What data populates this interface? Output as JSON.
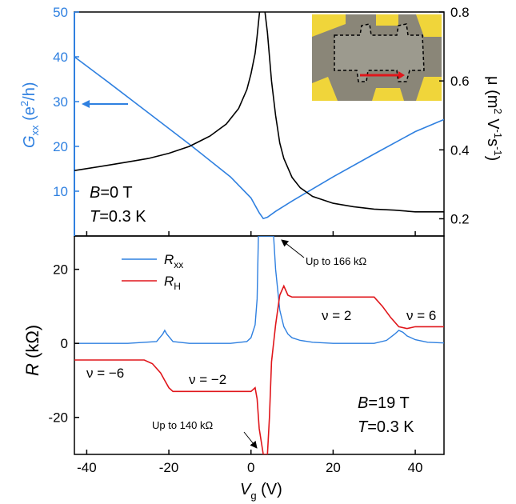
{
  "colors": {
    "gxx": "#2f80e0",
    "mobility": "#000000",
    "rxx": "#2f80e0",
    "rh": "#e0161b",
    "inset_contact": "#f0d53a",
    "inset_substrate": "#8a8678"
  },
  "chart_data": [
    {
      "type": "line",
      "panel": "top",
      "xlabel": "",
      "ylabel_left": "G_xx (e^2/h)",
      "ylabel_left_parts": [
        "G",
        "xx",
        " (e",
        "2",
        "/h)"
      ],
      "ylabel_right": "μ (m^2 V^-1 s^-1)",
      "ylabel_right_parts": [
        "μ (m",
        "2",
        " V",
        "-1",
        "s",
        "-1",
        ")"
      ],
      "xlim": [
        -43,
        47
      ],
      "ylim_left": [
        0,
        50
      ],
      "ylim_right": [
        0.15,
        0.8
      ],
      "yticks_left": [
        "10",
        "20",
        "30",
        "40",
        "50"
      ],
      "yticks_right": [
        "0.2",
        "0.4",
        "0.6",
        "0.8"
      ],
      "annotations": [
        "B=0 T",
        "T=0.3 K"
      ],
      "series": [
        {
          "axis": "left",
          "x": [
            -43,
            -35,
            -25,
            -15,
            -5,
            0,
            2,
            3,
            4,
            6,
            10,
            20,
            30,
            40,
            47
          ],
          "values": [
            40,
            34.5,
            27.5,
            20.5,
            13.2,
            8.5,
            5.2,
            3.9,
            4.2,
            5.5,
            7.8,
            13.2,
            18.3,
            23.3,
            26
          ]
        },
        {
          "axis": "right",
          "x": [
            -43,
            -35,
            -30,
            -25,
            -20,
            -15,
            -10,
            -6,
            -3,
            -1,
            0,
            1,
            1.5,
            2,
            2.3,
            3.2,
            4,
            5,
            6,
            7,
            8,
            10,
            12,
            15,
            20,
            25,
            30,
            35,
            40,
            47
          ],
          "values": [
            0.34,
            0.355,
            0.365,
            0.375,
            0.39,
            0.41,
            0.44,
            0.475,
            0.52,
            0.575,
            0.62,
            0.68,
            0.73,
            0.79,
            0.82,
            0.82,
            0.74,
            0.6,
            0.5,
            0.42,
            0.375,
            0.32,
            0.29,
            0.265,
            0.245,
            0.235,
            0.228,
            0.225,
            0.22,
            0.22
          ]
        }
      ]
    },
    {
      "type": "line",
      "panel": "bottom",
      "xlabel": "V_g (V)",
      "xlabel_parts": [
        "V",
        "g",
        " (V)"
      ],
      "ylabel": "R (kΩ)",
      "ylabel_parts": [
        "R",
        " (kΩ)"
      ],
      "xlim": [
        -43,
        47
      ],
      "ylim": [
        -30,
        29
      ],
      "xticks": [
        "-40",
        "-20",
        "0",
        "20",
        "40"
      ],
      "yticks": [
        "-20",
        "0",
        "20"
      ],
      "legend_position": "top-left",
      "series": [
        {
          "name": "R_xx",
          "name_parts": [
            "R",
            "xx"
          ],
          "x": [
            -43,
            -30,
            -23,
            -21.5,
            -21,
            -20.5,
            -19,
            -15,
            -5,
            -1,
            0,
            1,
            1.5,
            1.8,
            5.5,
            6,
            7,
            8,
            9,
            10,
            12,
            15,
            20,
            25,
            30,
            33,
            35,
            36,
            37,
            38,
            40,
            43,
            47
          ],
          "values": [
            0,
            0,
            0.5,
            2.5,
            3.5,
            2.5,
            0.5,
            0,
            0,
            0.5,
            1.5,
            5,
            12,
            29,
            29,
            20,
            9,
            4.5,
            2.5,
            1.5,
            0.8,
            0.3,
            0,
            0,
            0,
            0.8,
            2.5,
            3.5,
            3,
            2,
            1,
            0.3,
            0.1
          ]
        },
        {
          "name": "R_H",
          "name_parts": [
            "R",
            "H"
          ],
          "x": [
            -43,
            -26,
            -24,
            -22,
            -21,
            -20,
            -19,
            -18,
            -10,
            0,
            1,
            1.5,
            2,
            3,
            4,
            4.5,
            5,
            6,
            7,
            8,
            9,
            10,
            20,
            30,
            32,
            34,
            36,
            38,
            40,
            47
          ],
          "values": [
            -4.5,
            -4.5,
            -5.5,
            -8,
            -10,
            -12,
            -13,
            -13,
            -13,
            -13,
            -12,
            -15,
            -23,
            -30,
            -30,
            -20,
            -5,
            5,
            13,
            15.5,
            13,
            12.5,
            12.5,
            12.5,
            10,
            7,
            4.5,
            4,
            4.5,
            4.5
          ]
        }
      ],
      "annotations": {
        "nu_minus6": "ν = −6",
        "nu_minus2": "ν = −2",
        "nu_2": "ν = 2",
        "nu_6": "ν = 6",
        "up_to_166": "Up to 166 kΩ",
        "up_to_140": "Up to 140 kΩ",
        "b_field": "B=19 T",
        "temperature": "T=0.3 K"
      }
    }
  ]
}
